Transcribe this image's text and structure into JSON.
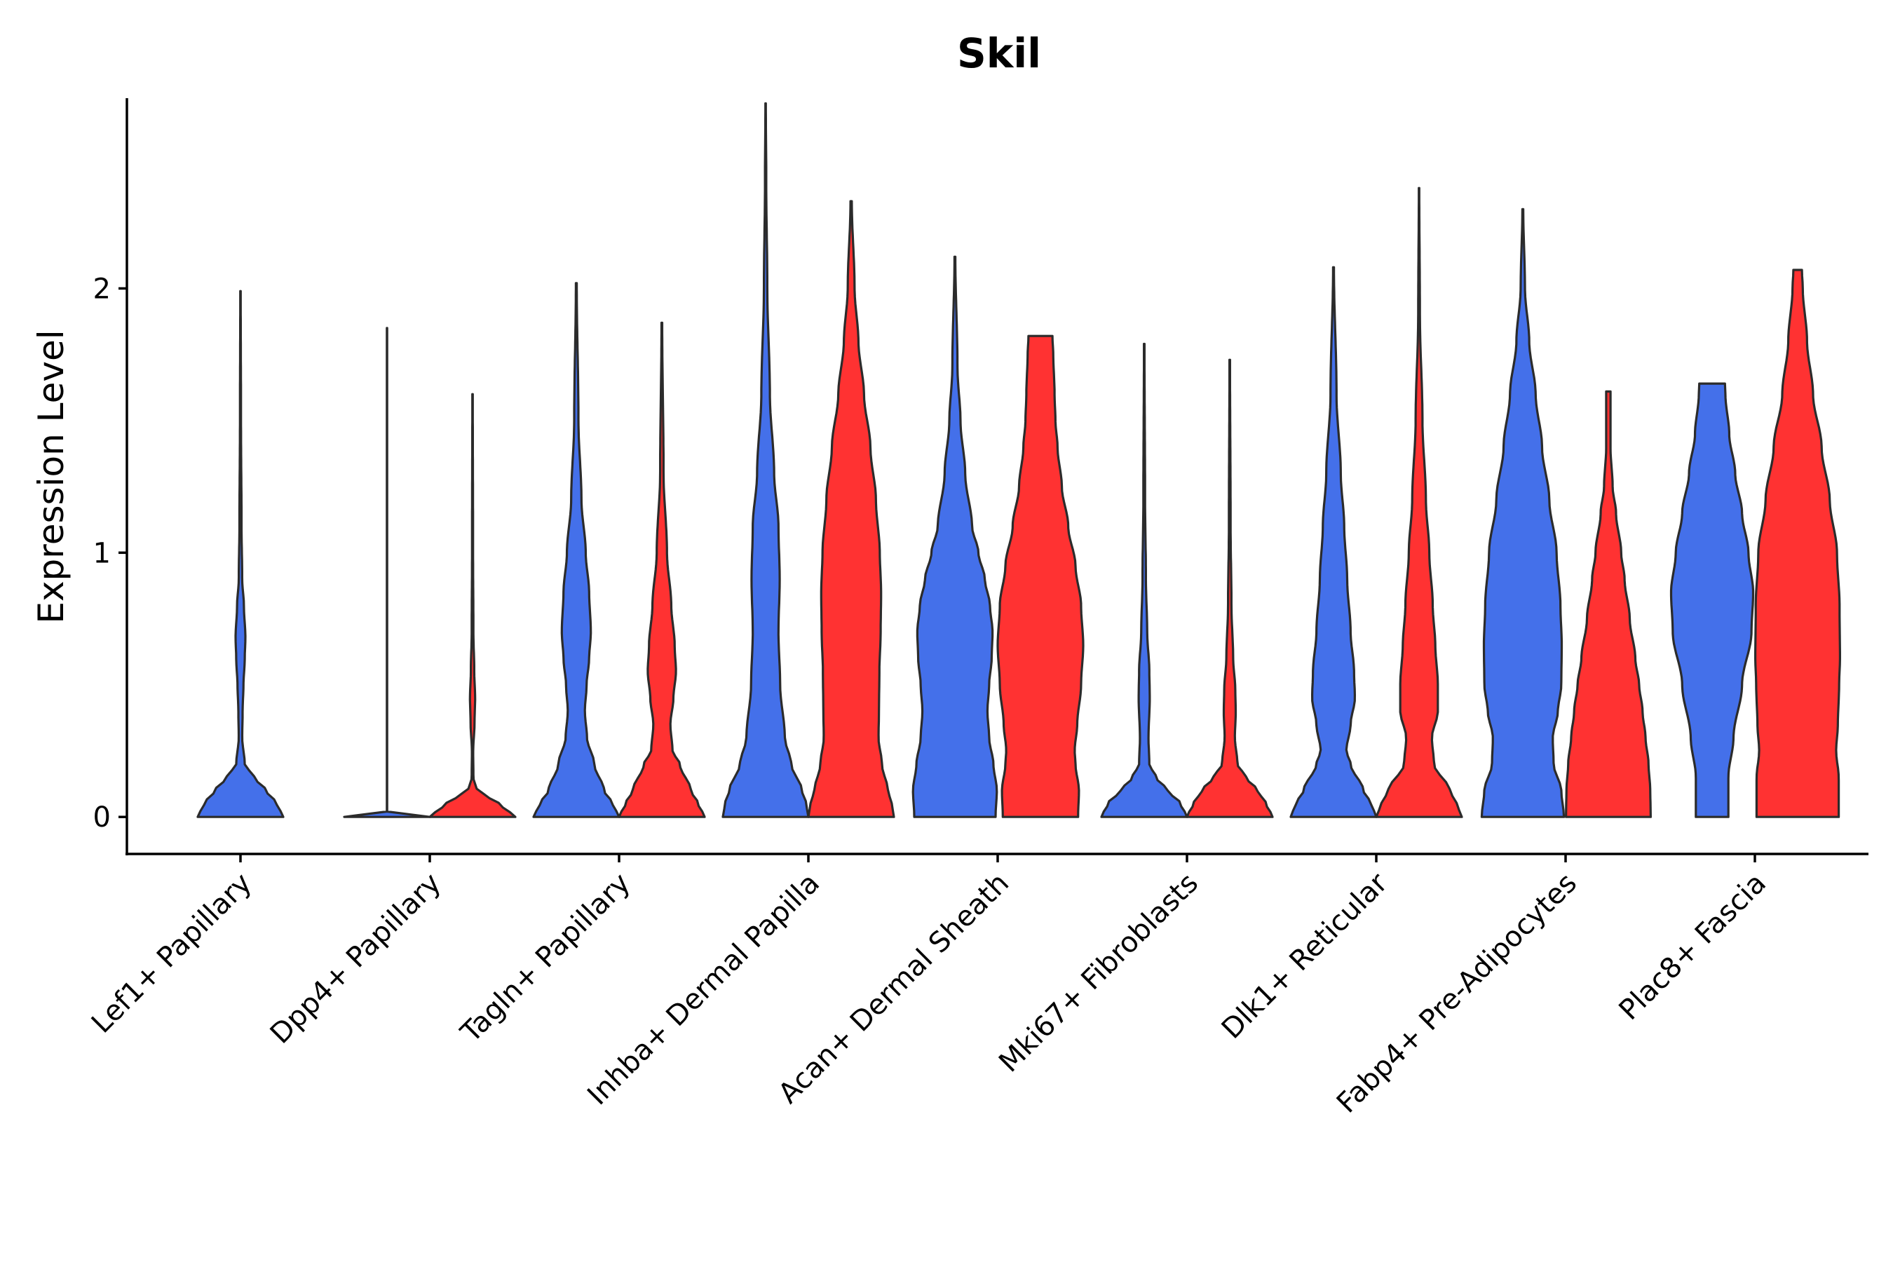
{
  "chart_data": {
    "type": "violin",
    "title": "Skil",
    "xlabel": "",
    "ylabel": "Expression Level",
    "ylim": [
      -0.14,
      2.72
    ],
    "yticks": [
      0,
      1,
      2
    ],
    "colors": {
      "group_a": "#4470EA",
      "group_b": "#FF3232",
      "outline": "#2B2B2B"
    },
    "categories": [
      "Lef1+ Papillary",
      "Dpp4+ Papillary",
      "Tagln+ Papillary",
      "Inhba+ Dermal Papilla",
      "Acan+ Dermal Sheath",
      "Mki67+ Fibroblasts",
      "Dlk1+ Reticular",
      "Fabp4+ Pre-Adipocytes",
      "Plac8+ Fascia"
    ],
    "violins": [
      {
        "category": "Lef1+ Papillary",
        "group": "a",
        "max": 1.99,
        "profile": [
          [
            0,
            1.0
          ],
          [
            0.05,
            0.85
          ],
          [
            0.1,
            0.6
          ],
          [
            0.15,
            0.32
          ],
          [
            0.2,
            0.1
          ],
          [
            0.3,
            0.04
          ],
          [
            0.4,
            0.05
          ],
          [
            0.5,
            0.07
          ],
          [
            0.6,
            0.1
          ],
          [
            0.68,
            0.115
          ],
          [
            0.8,
            0.08
          ],
          [
            0.9,
            0.04
          ],
          [
            1.1,
            0.025
          ],
          [
            1.5,
            0.012
          ],
          [
            1.99,
            0.005
          ]
        ]
      },
      {
        "category": "Dpp4+ Papillary",
        "group": "a",
        "max": 1.85,
        "profile": [
          [
            0,
            1.0
          ],
          [
            0.005,
            0.2
          ],
          [
            0.01,
            0.004
          ],
          [
            1.85,
            0.004
          ]
        ]
      },
      {
        "category": "Dpp4+ Papillary",
        "group": "b",
        "max": 1.6,
        "profile": [
          [
            0,
            1.0
          ],
          [
            0.04,
            0.7
          ],
          [
            0.08,
            0.35
          ],
          [
            0.1,
            0.1
          ],
          [
            0.15,
            0.02
          ],
          [
            0.25,
            0.015
          ],
          [
            0.35,
            0.045
          ],
          [
            0.45,
            0.06
          ],
          [
            0.55,
            0.04
          ],
          [
            0.7,
            0.02
          ],
          [
            1.0,
            0.012
          ],
          [
            1.6,
            0.005
          ]
        ]
      },
      {
        "category": "Tagln+ Papillary",
        "group": "a",
        "max": 2.02,
        "profile": [
          [
            0,
            1.0
          ],
          [
            0.05,
            0.85
          ],
          [
            0.1,
            0.65
          ],
          [
            0.2,
            0.42
          ],
          [
            0.3,
            0.25
          ],
          [
            0.4,
            0.2
          ],
          [
            0.5,
            0.24
          ],
          [
            0.6,
            0.3
          ],
          [
            0.7,
            0.34
          ],
          [
            0.85,
            0.3
          ],
          [
            1.0,
            0.22
          ],
          [
            1.2,
            0.12
          ],
          [
            1.5,
            0.05
          ],
          [
            2.02,
            0.01
          ]
        ]
      },
      {
        "category": "Tagln+ Papillary",
        "group": "b",
        "max": 1.87,
        "profile": [
          [
            0,
            1.0
          ],
          [
            0.05,
            0.85
          ],
          [
            0.1,
            0.68
          ],
          [
            0.2,
            0.42
          ],
          [
            0.25,
            0.25
          ],
          [
            0.35,
            0.2
          ],
          [
            0.45,
            0.27
          ],
          [
            0.55,
            0.33
          ],
          [
            0.65,
            0.3
          ],
          [
            0.8,
            0.22
          ],
          [
            1.0,
            0.12
          ],
          [
            1.3,
            0.04
          ],
          [
            1.87,
            0.008
          ]
        ]
      },
      {
        "category": "Inhba+ Dermal Papilla",
        "group": "a",
        "max": 2.7,
        "profile": [
          [
            0,
            1.0
          ],
          [
            0.05,
            0.95
          ],
          [
            0.1,
            0.85
          ],
          [
            0.2,
            0.6
          ],
          [
            0.3,
            0.45
          ],
          [
            0.5,
            0.34
          ],
          [
            0.7,
            0.3
          ],
          [
            0.9,
            0.33
          ],
          [
            1.1,
            0.3
          ],
          [
            1.3,
            0.2
          ],
          [
            1.6,
            0.1
          ],
          [
            2.0,
            0.04
          ],
          [
            2.4,
            0.015
          ],
          [
            2.7,
            0.005
          ]
        ]
      },
      {
        "category": "Inhba+ Dermal Papilla",
        "group": "b",
        "max": 2.33,
        "profile": [
          [
            0,
            1.0
          ],
          [
            0.05,
            0.95
          ],
          [
            0.1,
            0.86
          ],
          [
            0.2,
            0.72
          ],
          [
            0.3,
            0.64
          ],
          [
            0.4,
            0.65
          ],
          [
            0.55,
            0.66
          ],
          [
            0.7,
            0.69
          ],
          [
            0.85,
            0.7
          ],
          [
            1.0,
            0.67
          ],
          [
            1.2,
            0.58
          ],
          [
            1.4,
            0.45
          ],
          [
            1.6,
            0.3
          ],
          [
            1.8,
            0.17
          ],
          [
            2.0,
            0.08
          ],
          [
            2.33,
            0.015
          ]
        ]
      },
      {
        "category": "Acan+ Dermal Sheath",
        "group": "a",
        "max": 2.12,
        "profile": [
          [
            0,
            0.95
          ],
          [
            0.1,
            0.98
          ],
          [
            0.2,
            0.9
          ],
          [
            0.3,
            0.8
          ],
          [
            0.4,
            0.76
          ],
          [
            0.5,
            0.8
          ],
          [
            0.6,
            0.86
          ],
          [
            0.7,
            0.88
          ],
          [
            0.8,
            0.82
          ],
          [
            0.9,
            0.7
          ],
          [
            1.0,
            0.55
          ],
          [
            1.1,
            0.4
          ],
          [
            1.3,
            0.24
          ],
          [
            1.5,
            0.13
          ],
          [
            1.7,
            0.06
          ],
          [
            2.12,
            0.01
          ]
        ]
      },
      {
        "category": "Acan+ Dermal Sheath",
        "group": "b",
        "max": 1.82,
        "profile": [
          [
            0,
            0.88
          ],
          [
            0.1,
            0.9
          ],
          [
            0.2,
            0.82
          ],
          [
            0.25,
            0.8
          ],
          [
            0.35,
            0.86
          ],
          [
            0.5,
            0.95
          ],
          [
            0.65,
            1.0
          ],
          [
            0.8,
            0.95
          ],
          [
            0.95,
            0.82
          ],
          [
            1.1,
            0.65
          ],
          [
            1.25,
            0.5
          ],
          [
            1.4,
            0.4
          ],
          [
            1.5,
            0.35
          ],
          [
            1.6,
            0.33
          ],
          [
            1.75,
            0.3
          ],
          [
            1.82,
            0.28
          ]
        ]
      },
      {
        "category": "Mki67+ Fibroblasts",
        "group": "a",
        "max": 1.79,
        "profile": [
          [
            0,
            1.0
          ],
          [
            0.05,
            0.85
          ],
          [
            0.1,
            0.55
          ],
          [
            0.15,
            0.28
          ],
          [
            0.2,
            0.12
          ],
          [
            0.3,
            0.1
          ],
          [
            0.45,
            0.13
          ],
          [
            0.55,
            0.12
          ],
          [
            0.7,
            0.07
          ],
          [
            0.9,
            0.04
          ],
          [
            1.2,
            0.02
          ],
          [
            1.79,
            0.006
          ]
        ]
      },
      {
        "category": "Mki67+ Fibroblasts",
        "group": "b",
        "max": 1.73,
        "profile": [
          [
            0,
            1.0
          ],
          [
            0.05,
            0.85
          ],
          [
            0.1,
            0.65
          ],
          [
            0.15,
            0.38
          ],
          [
            0.2,
            0.18
          ],
          [
            0.3,
            0.12
          ],
          [
            0.4,
            0.14
          ],
          [
            0.48,
            0.13
          ],
          [
            0.6,
            0.08
          ],
          [
            0.8,
            0.04
          ],
          [
            1.1,
            0.02
          ],
          [
            1.73,
            0.006
          ]
        ]
      },
      {
        "category": "Dlk1+ Reticular",
        "group": "a",
        "max": 2.08,
        "profile": [
          [
            0,
            1.0
          ],
          [
            0.05,
            0.88
          ],
          [
            0.1,
            0.7
          ],
          [
            0.2,
            0.4
          ],
          [
            0.25,
            0.3
          ],
          [
            0.35,
            0.4
          ],
          [
            0.45,
            0.5
          ],
          [
            0.55,
            0.48
          ],
          [
            0.7,
            0.4
          ],
          [
            0.9,
            0.32
          ],
          [
            1.1,
            0.25
          ],
          [
            1.3,
            0.17
          ],
          [
            1.6,
            0.07
          ],
          [
            2.08,
            0.01
          ]
        ]
      },
      {
        "category": "Dlk1+ Reticular",
        "group": "b",
        "max": 2.38,
        "profile": [
          [
            0,
            1.0
          ],
          [
            0.05,
            0.88
          ],
          [
            0.1,
            0.72
          ],
          [
            0.2,
            0.35
          ],
          [
            0.3,
            0.3
          ],
          [
            0.4,
            0.44
          ],
          [
            0.5,
            0.44
          ],
          [
            0.65,
            0.38
          ],
          [
            0.8,
            0.32
          ],
          [
            1.0,
            0.24
          ],
          [
            1.2,
            0.16
          ],
          [
            1.5,
            0.08
          ],
          [
            1.9,
            0.02
          ],
          [
            2.38,
            0.005
          ]
        ]
      },
      {
        "category": "Fabp4+ Pre-Adipocytes",
        "group": "a",
        "max": 2.3,
        "profile": [
          [
            0,
            0.96
          ],
          [
            0.1,
            0.9
          ],
          [
            0.2,
            0.72
          ],
          [
            0.3,
            0.7
          ],
          [
            0.4,
            0.82
          ],
          [
            0.5,
            0.9
          ],
          [
            0.65,
            0.91
          ],
          [
            0.8,
            0.88
          ],
          [
            1.0,
            0.79
          ],
          [
            1.2,
            0.62
          ],
          [
            1.4,
            0.45
          ],
          [
            1.6,
            0.3
          ],
          [
            1.8,
            0.15
          ],
          [
            2.0,
            0.05
          ],
          [
            2.3,
            0.01
          ]
        ]
      },
      {
        "category": "Fabp4+ Pre-Adipocytes",
        "group": "b",
        "max": 1.61,
        "profile": [
          [
            0,
            0.99
          ],
          [
            0.1,
            0.98
          ],
          [
            0.2,
            0.94
          ],
          [
            0.3,
            0.87
          ],
          [
            0.4,
            0.8
          ],
          [
            0.5,
            0.72
          ],
          [
            0.6,
            0.63
          ],
          [
            0.75,
            0.5
          ],
          [
            0.9,
            0.38
          ],
          [
            1.0,
            0.3
          ],
          [
            1.15,
            0.18
          ],
          [
            1.25,
            0.1
          ],
          [
            1.4,
            0.05
          ],
          [
            1.61,
            0.05
          ]
        ]
      },
      {
        "category": "Plac8+ Fascia",
        "group": "a",
        "max": 1.64,
        "profile": [
          [
            0,
            0.38
          ],
          [
            0.15,
            0.38
          ],
          [
            0.3,
            0.5
          ],
          [
            0.5,
            0.7
          ],
          [
            0.7,
            0.92
          ],
          [
            0.85,
            0.96
          ],
          [
            1.0,
            0.85
          ],
          [
            1.15,
            0.7
          ],
          [
            1.3,
            0.54
          ],
          [
            1.45,
            0.4
          ],
          [
            1.6,
            0.31
          ],
          [
            1.64,
            0.3
          ]
        ]
      },
      {
        "category": "Plac8+ Fascia",
        "group": "b",
        "max": 2.07,
        "profile": [
          [
            0,
            0.96
          ],
          [
            0.15,
            0.96
          ],
          [
            0.25,
            0.9
          ],
          [
            0.35,
            0.94
          ],
          [
            0.5,
            0.97
          ],
          [
            0.6,
            0.99
          ],
          [
            0.8,
            0.98
          ],
          [
            1.0,
            0.92
          ],
          [
            1.2,
            0.75
          ],
          [
            1.4,
            0.56
          ],
          [
            1.6,
            0.36
          ],
          [
            1.8,
            0.22
          ],
          [
            2.0,
            0.12
          ],
          [
            2.07,
            0.1
          ]
        ]
      }
    ]
  }
}
